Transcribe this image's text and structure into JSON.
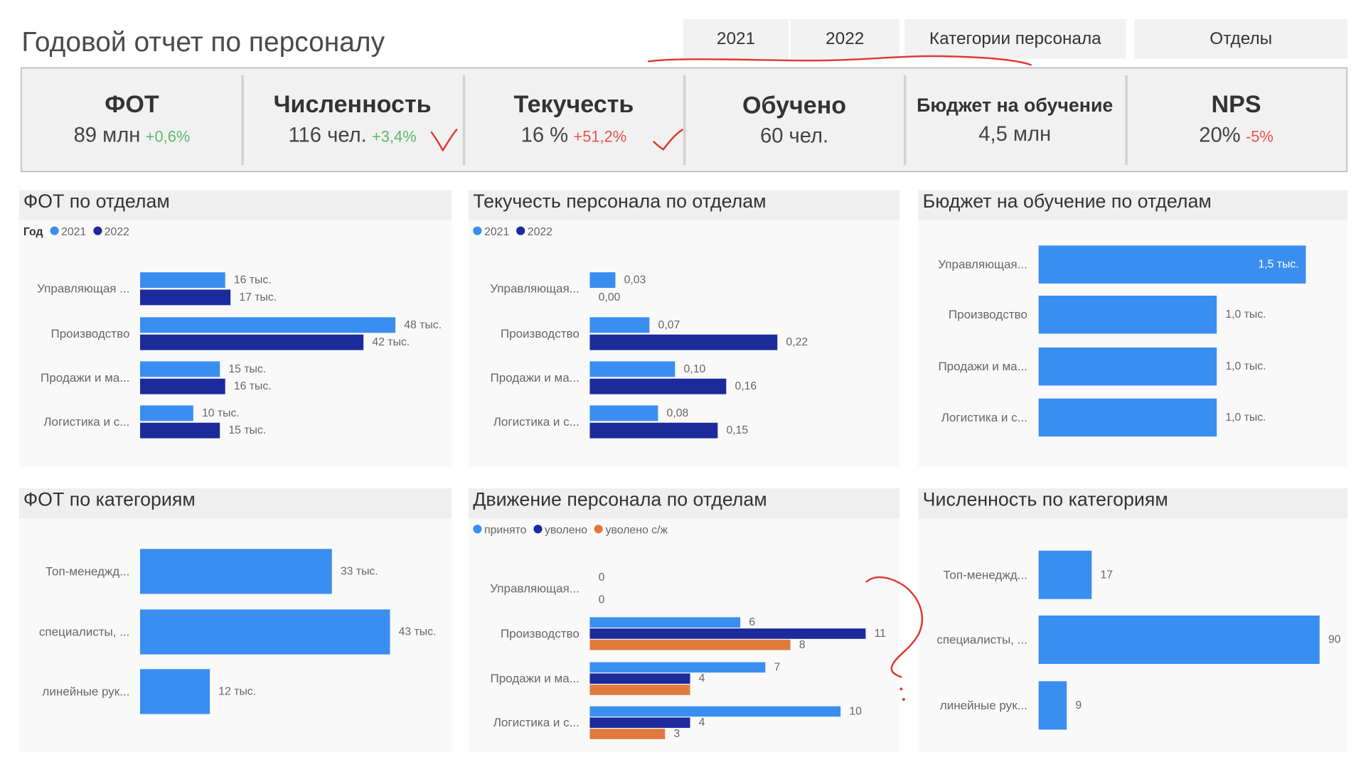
{
  "header": {
    "title": "Годовой отчет по персоналу",
    "tabs": [
      {
        "label": "2021"
      },
      {
        "label": "2022"
      },
      {
        "label": "Категории персонала"
      },
      {
        "label": "Отделы"
      }
    ]
  },
  "kpis": [
    {
      "title": "ФОТ",
      "value": "89 млн",
      "delta": "+0,6%",
      "delta_color": "#5cb96b"
    },
    {
      "title": "Численность",
      "value": "116 чел.",
      "delta": "+3,4%",
      "delta_color": "#5cb96b"
    },
    {
      "title": "Текучесть",
      "value": "16 %",
      "delta": "+51,2%",
      "delta_color": "#e5534b"
    },
    {
      "title": "Обучено",
      "value": "60 чел."
    },
    {
      "title": "Бюджет на обучение",
      "value": "4,5 млн"
    },
    {
      "title": "NPS",
      "value": "20%",
      "delta": "-5%",
      "delta_color": "#e5534b"
    }
  ],
  "annotation_color": "#e3342f",
  "chart_data": [
    {
      "type": "bar",
      "orientation": "horizontal",
      "title": "ФОТ по отделам",
      "legend": {
        "title": "Год",
        "position": "top-left"
      },
      "grid": false,
      "categories": [
        "Управляющая ...",
        "Производство",
        "Продажи и ма...",
        "Логистика и с..."
      ],
      "series": [
        {
          "name": "2021",
          "color": "#3a8ef0",
          "values": [
            16,
            48,
            15,
            10
          ],
          "labels": [
            "16 тыс.",
            "48 тыс.",
            "15 тыс.",
            "10 тыс."
          ]
        },
        {
          "name": "2022",
          "color": "#1c2a9c",
          "values": [
            17,
            42,
            16,
            15
          ],
          "labels": [
            "17 тыс.",
            "42 тыс.",
            "16 тыс.",
            "15 тыс."
          ]
        }
      ]
    },
    {
      "type": "bar",
      "orientation": "horizontal",
      "title": "Текучесть персонала по отделам",
      "legend": {
        "position": "top-left"
      },
      "grid": false,
      "categories": [
        "Управляющая...",
        "Производство",
        "Продажи и ма...",
        "Логистика и с..."
      ],
      "series": [
        {
          "name": "2021",
          "color": "#3a8ef0",
          "values": [
            0.03,
            0.07,
            0.1,
            0.08
          ],
          "labels": [
            "0,03",
            "0,07",
            "0,10",
            "0,08"
          ]
        },
        {
          "name": "2022",
          "color": "#1c2a9c",
          "values": [
            0.0,
            0.22,
            0.16,
            0.15
          ],
          "labels": [
            "0,00",
            "0,22",
            "0,16",
            "0,15"
          ]
        }
      ]
    },
    {
      "type": "bar",
      "orientation": "horizontal",
      "title": "Бюджет на обучение по отделам",
      "grid": false,
      "categories": [
        "Управляющая...",
        "Производство",
        "Продажи и ма...",
        "Логистика и с..."
      ],
      "series": [
        {
          "color": "#3a8ef0",
          "values": [
            1.5,
            1.0,
            1.0,
            1.0
          ],
          "labels": [
            "1,5 тыс.",
            "1,0 тыс.",
            "1,0 тыс.",
            "1,0 тыс."
          ]
        }
      ]
    },
    {
      "type": "bar",
      "orientation": "horizontal",
      "title": "ФОТ по категориям",
      "grid": false,
      "categories": [
        "Топ-менеджд...",
        "специалисты, ...",
        "линейные рук..."
      ],
      "series": [
        {
          "color": "#3a8ef0",
          "values": [
            33,
            43,
            12
          ],
          "labels": [
            "33 тыс.",
            "43 тыс.",
            "12 тыс."
          ]
        }
      ]
    },
    {
      "type": "bar",
      "orientation": "horizontal",
      "title": "Движение персонала по отделам",
      "legend": {
        "position": "top-left"
      },
      "grid": false,
      "categories": [
        "Управляющая...",
        "Производство",
        "Продажи и ма...",
        "Логистика и с..."
      ],
      "series": [
        {
          "name": "принято",
          "color": "#3a8ef0",
          "values": [
            0,
            6,
            7,
            10
          ],
          "labels": [
            "0",
            "6",
            "7",
            "10"
          ]
        },
        {
          "name": "уволено",
          "color": "#1c2a9c",
          "values": [
            null,
            11,
            4,
            4
          ],
          "labels": [
            "",
            "11",
            "4",
            "4"
          ]
        },
        {
          "name": "уволено с/ж",
          "color": "#e07b3c",
          "values": [
            0,
            8,
            4,
            3
          ],
          "labels": [
            "0",
            "8",
            "",
            "3"
          ]
        }
      ]
    },
    {
      "type": "bar",
      "orientation": "horizontal",
      "title": "Численность по категориям",
      "grid": false,
      "categories": [
        "Топ-менеджд...",
        "специалисты, ...",
        "линейные рук..."
      ],
      "series": [
        {
          "color": "#3a8ef0",
          "values": [
            17,
            90,
            9
          ],
          "labels": [
            "17",
            "90",
            "9"
          ]
        }
      ]
    }
  ]
}
